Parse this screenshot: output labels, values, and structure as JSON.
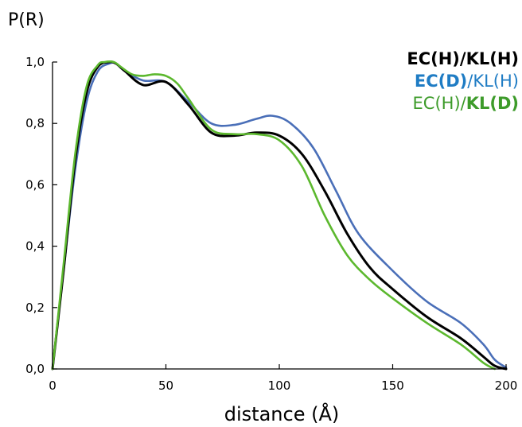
{
  "chart_data": {
    "type": "line",
    "ylabel": "P(R)",
    "xlabel": "distance (Å)",
    "xlim": [
      0,
      200
    ],
    "ylim": [
      0,
      1.0
    ],
    "x_ticks": [
      0,
      50,
      100,
      150,
      200
    ],
    "x_tick_labels": [
      "0",
      "50",
      "100",
      "150",
      "200"
    ],
    "y_ticks": [
      0,
      0.2,
      0.4,
      0.6,
      0.8,
      1.0
    ],
    "y_tick_labels": [
      "0,0",
      "0,2",
      "0,4",
      "0,6",
      "0,8",
      "1,0"
    ],
    "grid": false,
    "legend_position": "top-right",
    "legend": [
      {
        "parts": [
          {
            "text": "EC(H)/KL(H)",
            "bold": true,
            "color": "#000000"
          }
        ]
      },
      {
        "parts": [
          {
            "text": "EC(D)",
            "bold": true,
            "color": "#1f7cc4"
          },
          {
            "text": "/KL(H)",
            "bold": false,
            "color": "#1f7cc4"
          }
        ]
      },
      {
        "parts": [
          {
            "text": "EC(H)/",
            "bold": false,
            "color": "#3d9b2a"
          },
          {
            "text": "KL(D)",
            "bold": true,
            "color": "#3d9b2a"
          }
        ]
      }
    ],
    "series": [
      {
        "color": "#4a6fb8",
        "x": [
          0,
          5,
          10,
          15,
          20,
          25,
          28,
          32,
          40,
          50,
          60,
          70,
          80,
          90,
          97,
          105,
          115,
          125,
          135,
          150,
          165,
          180,
          190,
          195,
          200
        ],
        "y": [
          0,
          0.33,
          0.65,
          0.87,
          0.97,
          0.995,
          0.995,
          0.97,
          0.94,
          0.935,
          0.87,
          0.8,
          0.795,
          0.815,
          0.825,
          0.8,
          0.72,
          0.58,
          0.44,
          0.32,
          0.22,
          0.15,
          0.08,
          0.03,
          0.005
        ]
      },
      {
        "color": "#000000",
        "x": [
          0,
          5,
          10,
          15,
          20,
          25,
          28,
          32,
          40,
          50,
          60,
          70,
          80,
          90,
          100,
          110,
          120,
          130,
          140,
          150,
          165,
          180,
          190,
          195,
          200
        ],
        "y": [
          0,
          0.33,
          0.68,
          0.9,
          0.985,
          1.0,
          0.995,
          0.97,
          0.925,
          0.935,
          0.86,
          0.77,
          0.76,
          0.77,
          0.76,
          0.7,
          0.58,
          0.44,
          0.33,
          0.26,
          0.17,
          0.1,
          0.04,
          0.01,
          0.0
        ]
      },
      {
        "color": "#5cb82e",
        "x": [
          0,
          5,
          10,
          15,
          20,
          23,
          27,
          30,
          35,
          40,
          45,
          50,
          55,
          60,
          70,
          80,
          90,
          100,
          110,
          120,
          130,
          140,
          150,
          165,
          180,
          190,
          195
        ],
        "y": [
          0,
          0.35,
          0.7,
          0.92,
          0.99,
          1.0,
          1.0,
          0.985,
          0.96,
          0.955,
          0.96,
          0.955,
          0.93,
          0.88,
          0.78,
          0.765,
          0.765,
          0.745,
          0.66,
          0.5,
          0.37,
          0.29,
          0.23,
          0.15,
          0.08,
          0.02,
          0.0
        ]
      }
    ]
  }
}
